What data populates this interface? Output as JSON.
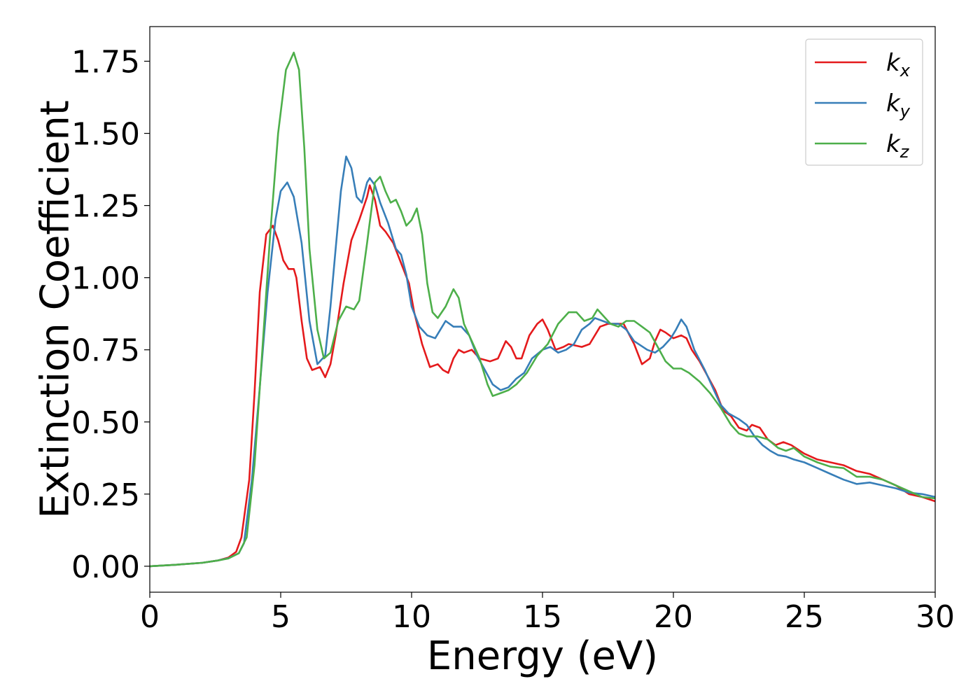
{
  "chart_data": {
    "type": "line",
    "xlabel": "Energy (eV)",
    "ylabel": "Extinction Coefficient",
    "xlim": [
      0,
      30
    ],
    "ylim": [
      -0.09,
      1.87
    ],
    "x_ticks": [
      "0",
      "5",
      "10",
      "15",
      "20",
      "25",
      "30"
    ],
    "y_ticks": [
      "0.00",
      "0.25",
      "0.50",
      "0.75",
      "1.00",
      "1.25",
      "1.50",
      "1.75"
    ],
    "grid": false,
    "legend_position": "top-right",
    "series": [
      {
        "name": "k_x",
        "legend_base": "k",
        "legend_sub": "x",
        "color": "#e41a1c",
        "points": [
          [
            0,
            0
          ],
          [
            1,
            0.005
          ],
          [
            2,
            0.012
          ],
          [
            2.6,
            0.02
          ],
          [
            3.0,
            0.03
          ],
          [
            3.3,
            0.05
          ],
          [
            3.5,
            0.1
          ],
          [
            3.8,
            0.3
          ],
          [
            4.0,
            0.6
          ],
          [
            4.2,
            0.95
          ],
          [
            4.45,
            1.15
          ],
          [
            4.7,
            1.18
          ],
          [
            4.9,
            1.13
          ],
          [
            5.1,
            1.06
          ],
          [
            5.3,
            1.03
          ],
          [
            5.5,
            1.03
          ],
          [
            5.6,
            1.0
          ],
          [
            5.8,
            0.85
          ],
          [
            6.0,
            0.72
          ],
          [
            6.2,
            0.68
          ],
          [
            6.5,
            0.69
          ],
          [
            6.7,
            0.655
          ],
          [
            6.9,
            0.7
          ],
          [
            7.1,
            0.8
          ],
          [
            7.4,
            0.98
          ],
          [
            7.7,
            1.13
          ],
          [
            8.0,
            1.2
          ],
          [
            8.3,
            1.28
          ],
          [
            8.4,
            1.32
          ],
          [
            8.6,
            1.27
          ],
          [
            8.8,
            1.18
          ],
          [
            9.0,
            1.16
          ],
          [
            9.3,
            1.12
          ],
          [
            9.6,
            1.05
          ],
          [
            9.9,
            0.98
          ],
          [
            10.1,
            0.88
          ],
          [
            10.4,
            0.77
          ],
          [
            10.7,
            0.69
          ],
          [
            11.0,
            0.7
          ],
          [
            11.2,
            0.68
          ],
          [
            11.4,
            0.67
          ],
          [
            11.6,
            0.72
          ],
          [
            11.8,
            0.75
          ],
          [
            12.0,
            0.74
          ],
          [
            12.3,
            0.75
          ],
          [
            12.6,
            0.72
          ],
          [
            13.0,
            0.71
          ],
          [
            13.3,
            0.72
          ],
          [
            13.6,
            0.78
          ],
          [
            13.8,
            0.76
          ],
          [
            14.0,
            0.72
          ],
          [
            14.2,
            0.72
          ],
          [
            14.5,
            0.8
          ],
          [
            14.8,
            0.84
          ],
          [
            15.0,
            0.855
          ],
          [
            15.2,
            0.82
          ],
          [
            15.5,
            0.75
          ],
          [
            15.8,
            0.76
          ],
          [
            16.0,
            0.77
          ],
          [
            16.5,
            0.76
          ],
          [
            16.8,
            0.77
          ],
          [
            17.2,
            0.83
          ],
          [
            17.5,
            0.84
          ],
          [
            17.8,
            0.84
          ],
          [
            18.1,
            0.84
          ],
          [
            18.5,
            0.77
          ],
          [
            18.8,
            0.7
          ],
          [
            19.1,
            0.72
          ],
          [
            19.3,
            0.78
          ],
          [
            19.5,
            0.82
          ],
          [
            19.7,
            0.81
          ],
          [
            20.0,
            0.79
          ],
          [
            20.3,
            0.8
          ],
          [
            20.5,
            0.79
          ],
          [
            20.7,
            0.75
          ],
          [
            21.0,
            0.71
          ],
          [
            21.3,
            0.66
          ],
          [
            21.6,
            0.61
          ],
          [
            21.9,
            0.54
          ],
          [
            22.2,
            0.52
          ],
          [
            22.5,
            0.48
          ],
          [
            22.8,
            0.47
          ],
          [
            23.0,
            0.49
          ],
          [
            23.3,
            0.48
          ],
          [
            23.6,
            0.44
          ],
          [
            23.9,
            0.42
          ],
          [
            24.2,
            0.43
          ],
          [
            24.5,
            0.42
          ],
          [
            25.0,
            0.39
          ],
          [
            25.5,
            0.37
          ],
          [
            26.0,
            0.36
          ],
          [
            26.5,
            0.35
          ],
          [
            27.0,
            0.33
          ],
          [
            27.5,
            0.32
          ],
          [
            28.0,
            0.3
          ],
          [
            28.5,
            0.28
          ],
          [
            29.0,
            0.25
          ],
          [
            29.5,
            0.24
          ],
          [
            30.0,
            0.225
          ]
        ]
      },
      {
        "name": "k_y",
        "legend_base": "k",
        "legend_sub": "y",
        "color": "#377eb8",
        "points": [
          [
            0,
            0
          ],
          [
            1,
            0.005
          ],
          [
            2,
            0.012
          ],
          [
            2.6,
            0.02
          ],
          [
            3.0,
            0.028
          ],
          [
            3.4,
            0.045
          ],
          [
            3.6,
            0.08
          ],
          [
            3.9,
            0.3
          ],
          [
            4.2,
            0.62
          ],
          [
            4.5,
            0.95
          ],
          [
            4.8,
            1.2
          ],
          [
            5.0,
            1.3
          ],
          [
            5.25,
            1.33
          ],
          [
            5.5,
            1.28
          ],
          [
            5.8,
            1.12
          ],
          [
            6.1,
            0.85
          ],
          [
            6.4,
            0.7
          ],
          [
            6.7,
            0.73
          ],
          [
            6.9,
            0.9
          ],
          [
            7.1,
            1.1
          ],
          [
            7.3,
            1.3
          ],
          [
            7.5,
            1.42
          ],
          [
            7.7,
            1.38
          ],
          [
            7.9,
            1.28
          ],
          [
            8.1,
            1.26
          ],
          [
            8.3,
            1.33
          ],
          [
            8.4,
            1.345
          ],
          [
            8.6,
            1.32
          ],
          [
            8.8,
            1.26
          ],
          [
            9.1,
            1.19
          ],
          [
            9.4,
            1.1
          ],
          [
            9.6,
            1.08
          ],
          [
            9.8,
            1.01
          ],
          [
            10.0,
            0.9
          ],
          [
            10.3,
            0.83
          ],
          [
            10.6,
            0.8
          ],
          [
            10.9,
            0.79
          ],
          [
            11.3,
            0.85
          ],
          [
            11.6,
            0.83
          ],
          [
            11.9,
            0.83
          ],
          [
            12.2,
            0.8
          ],
          [
            12.5,
            0.73
          ],
          [
            12.8,
            0.68
          ],
          [
            13.1,
            0.63
          ],
          [
            13.4,
            0.61
          ],
          [
            13.7,
            0.62
          ],
          [
            14.0,
            0.65
          ],
          [
            14.3,
            0.67
          ],
          [
            14.6,
            0.72
          ],
          [
            15.0,
            0.75
          ],
          [
            15.3,
            0.76
          ],
          [
            15.6,
            0.74
          ],
          [
            15.9,
            0.75
          ],
          [
            16.2,
            0.77
          ],
          [
            16.5,
            0.82
          ],
          [
            16.8,
            0.84
          ],
          [
            17.0,
            0.86
          ],
          [
            17.3,
            0.85
          ],
          [
            17.6,
            0.84
          ],
          [
            17.9,
            0.84
          ],
          [
            18.2,
            0.82
          ],
          [
            18.5,
            0.78
          ],
          [
            19.0,
            0.75
          ],
          [
            19.3,
            0.74
          ],
          [
            19.6,
            0.76
          ],
          [
            19.9,
            0.79
          ],
          [
            20.1,
            0.82
          ],
          [
            20.3,
            0.855
          ],
          [
            20.5,
            0.83
          ],
          [
            20.8,
            0.75
          ],
          [
            21.2,
            0.68
          ],
          [
            21.5,
            0.62
          ],
          [
            21.8,
            0.56
          ],
          [
            22.1,
            0.53
          ],
          [
            22.5,
            0.51
          ],
          [
            22.8,
            0.49
          ],
          [
            23.1,
            0.45
          ],
          [
            23.4,
            0.42
          ],
          [
            23.7,
            0.4
          ],
          [
            24.0,
            0.385
          ],
          [
            24.3,
            0.38
          ],
          [
            24.6,
            0.37
          ],
          [
            25.0,
            0.36
          ],
          [
            25.5,
            0.34
          ],
          [
            26.0,
            0.32
          ],
          [
            26.5,
            0.3
          ],
          [
            27.0,
            0.285
          ],
          [
            27.5,
            0.29
          ],
          [
            28.0,
            0.28
          ],
          [
            28.5,
            0.27
          ],
          [
            29.0,
            0.255
          ],
          [
            29.5,
            0.25
          ],
          [
            30.0,
            0.24
          ]
        ]
      },
      {
        "name": "k_z",
        "legend_base": "k",
        "legend_sub": "z",
        "color": "#4daf4a",
        "points": [
          [
            0,
            0
          ],
          [
            1,
            0.005
          ],
          [
            2,
            0.012
          ],
          [
            2.6,
            0.02
          ],
          [
            3.0,
            0.027
          ],
          [
            3.4,
            0.045
          ],
          [
            3.7,
            0.1
          ],
          [
            4.0,
            0.35
          ],
          [
            4.3,
            0.75
          ],
          [
            4.6,
            1.15
          ],
          [
            4.9,
            1.5
          ],
          [
            5.2,
            1.72
          ],
          [
            5.5,
            1.78
          ],
          [
            5.7,
            1.72
          ],
          [
            5.9,
            1.45
          ],
          [
            6.1,
            1.1
          ],
          [
            6.4,
            0.82
          ],
          [
            6.65,
            0.72
          ],
          [
            6.9,
            0.74
          ],
          [
            7.2,
            0.85
          ],
          [
            7.5,
            0.9
          ],
          [
            7.8,
            0.89
          ],
          [
            8.0,
            0.92
          ],
          [
            8.3,
            1.12
          ],
          [
            8.6,
            1.33
          ],
          [
            8.8,
            1.35
          ],
          [
            9.0,
            1.3
          ],
          [
            9.2,
            1.26
          ],
          [
            9.4,
            1.27
          ],
          [
            9.6,
            1.23
          ],
          [
            9.8,
            1.18
          ],
          [
            10.0,
            1.2
          ],
          [
            10.2,
            1.24
          ],
          [
            10.4,
            1.15
          ],
          [
            10.6,
            0.98
          ],
          [
            10.8,
            0.88
          ],
          [
            11.0,
            0.86
          ],
          [
            11.3,
            0.9
          ],
          [
            11.6,
            0.96
          ],
          [
            11.8,
            0.93
          ],
          [
            12.0,
            0.84
          ],
          [
            12.3,
            0.78
          ],
          [
            12.6,
            0.72
          ],
          [
            12.9,
            0.63
          ],
          [
            13.1,
            0.59
          ],
          [
            13.4,
            0.6
          ],
          [
            13.7,
            0.61
          ],
          [
            14.0,
            0.63
          ],
          [
            14.4,
            0.67
          ],
          [
            14.8,
            0.73
          ],
          [
            15.2,
            0.77
          ],
          [
            15.6,
            0.84
          ],
          [
            16.0,
            0.88
          ],
          [
            16.3,
            0.88
          ],
          [
            16.6,
            0.85
          ],
          [
            16.9,
            0.86
          ],
          [
            17.1,
            0.89
          ],
          [
            17.3,
            0.87
          ],
          [
            17.6,
            0.84
          ],
          [
            17.9,
            0.83
          ],
          [
            18.2,
            0.85
          ],
          [
            18.5,
            0.85
          ],
          [
            18.8,
            0.83
          ],
          [
            19.1,
            0.81
          ],
          [
            19.4,
            0.76
          ],
          [
            19.7,
            0.71
          ],
          [
            20.0,
            0.685
          ],
          [
            20.3,
            0.685
          ],
          [
            20.6,
            0.67
          ],
          [
            21.0,
            0.64
          ],
          [
            21.4,
            0.6
          ],
          [
            21.8,
            0.55
          ],
          [
            22.2,
            0.49
          ],
          [
            22.5,
            0.46
          ],
          [
            22.8,
            0.45
          ],
          [
            23.2,
            0.45
          ],
          [
            23.6,
            0.44
          ],
          [
            24.0,
            0.41
          ],
          [
            24.3,
            0.4
          ],
          [
            24.6,
            0.41
          ],
          [
            25.0,
            0.38
          ],
          [
            25.5,
            0.36
          ],
          [
            26.0,
            0.345
          ],
          [
            26.5,
            0.34
          ],
          [
            27.0,
            0.31
          ],
          [
            27.5,
            0.31
          ],
          [
            28.0,
            0.3
          ],
          [
            28.5,
            0.28
          ],
          [
            29.0,
            0.26
          ],
          [
            29.5,
            0.24
          ],
          [
            30.0,
            0.235
          ]
        ]
      }
    ]
  }
}
